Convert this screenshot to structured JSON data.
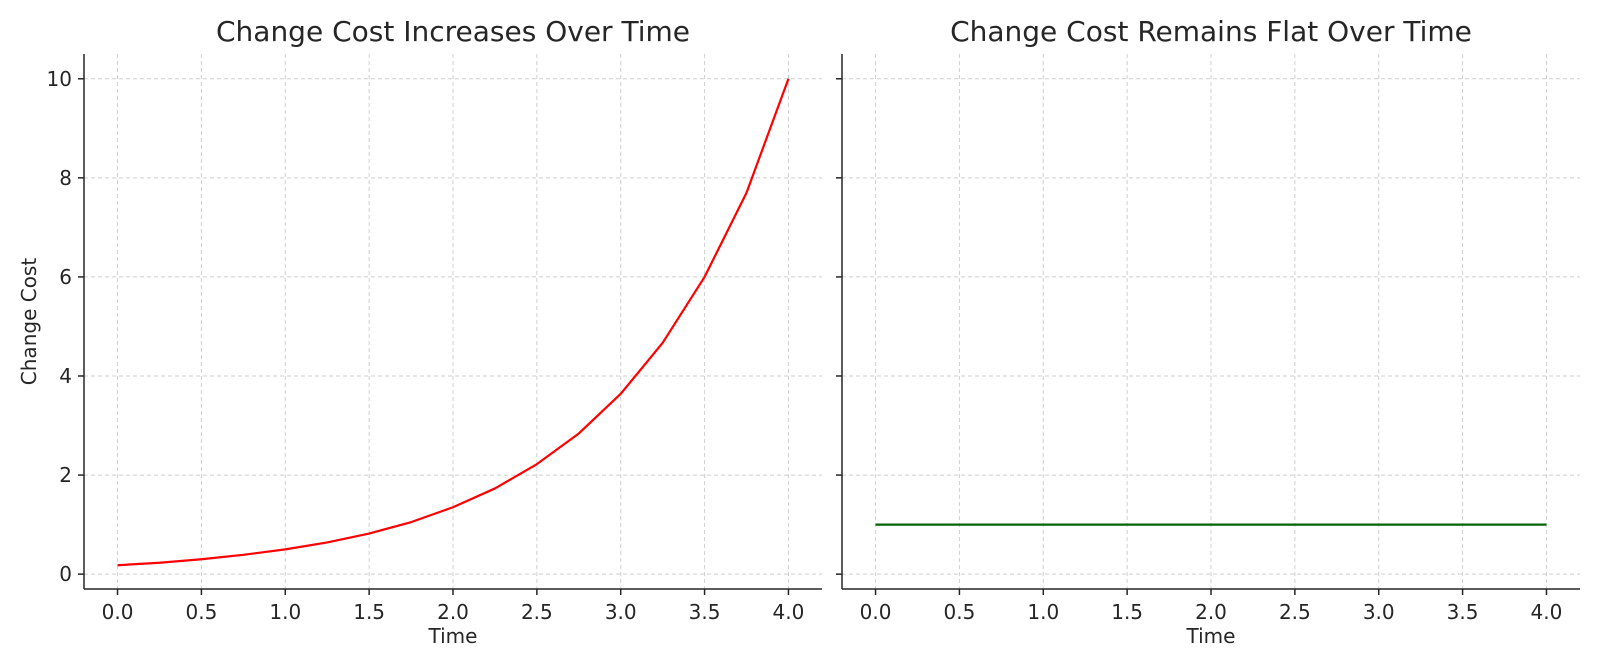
{
  "chart_data": [
    {
      "type": "line",
      "title": "Change Cost Increases Over Time",
      "xlabel": "Time",
      "ylabel": "Change Cost",
      "xlim": [
        -0.2,
        4.2
      ],
      "ylim": [
        -0.3,
        10.5
      ],
      "xticks": [
        0.0,
        0.5,
        1.0,
        1.5,
        2.0,
        2.5,
        3.0,
        3.5,
        4.0
      ],
      "xtick_labels": [
        "0.0",
        "0.5",
        "1.0",
        "1.5",
        "2.0",
        "2.5",
        "3.0",
        "3.5",
        "4.0"
      ],
      "yticks": [
        0,
        2,
        4,
        6,
        8,
        10
      ],
      "ytick_labels": [
        "0",
        "2",
        "4",
        "6",
        "8",
        "10"
      ],
      "grid": true,
      "series": [
        {
          "color": "#ff0000",
          "x": [
            0.0,
            0.25,
            0.5,
            0.75,
            1.0,
            1.25,
            1.5,
            1.75,
            2.0,
            2.25,
            2.5,
            2.75,
            3.0,
            3.25,
            3.5,
            3.75,
            4.0
          ],
          "y": [
            0.18,
            0.23,
            0.3,
            0.39,
            0.5,
            0.64,
            0.82,
            1.05,
            1.35,
            1.73,
            2.22,
            2.84,
            3.64,
            4.67,
            6.0,
            7.7,
            10.0
          ]
        }
      ]
    },
    {
      "type": "line",
      "title": "Change Cost Remains Flat Over Time",
      "xlabel": "Time",
      "ylabel": "",
      "xlim": [
        -0.2,
        4.2
      ],
      "ylim": [
        -0.3,
        10.5
      ],
      "xticks": [
        0.0,
        0.5,
        1.0,
        1.5,
        2.0,
        2.5,
        3.0,
        3.5,
        4.0
      ],
      "xtick_labels": [
        "0.0",
        "0.5",
        "1.0",
        "1.5",
        "2.0",
        "2.5",
        "3.0",
        "3.5",
        "4.0"
      ],
      "yticks": [
        0,
        2,
        4,
        6,
        8,
        10
      ],
      "ytick_labels": [],
      "grid": true,
      "series": [
        {
          "color": "#006400",
          "x": [
            0.0,
            4.0
          ],
          "y": [
            1.0,
            1.0
          ]
        }
      ]
    }
  ]
}
